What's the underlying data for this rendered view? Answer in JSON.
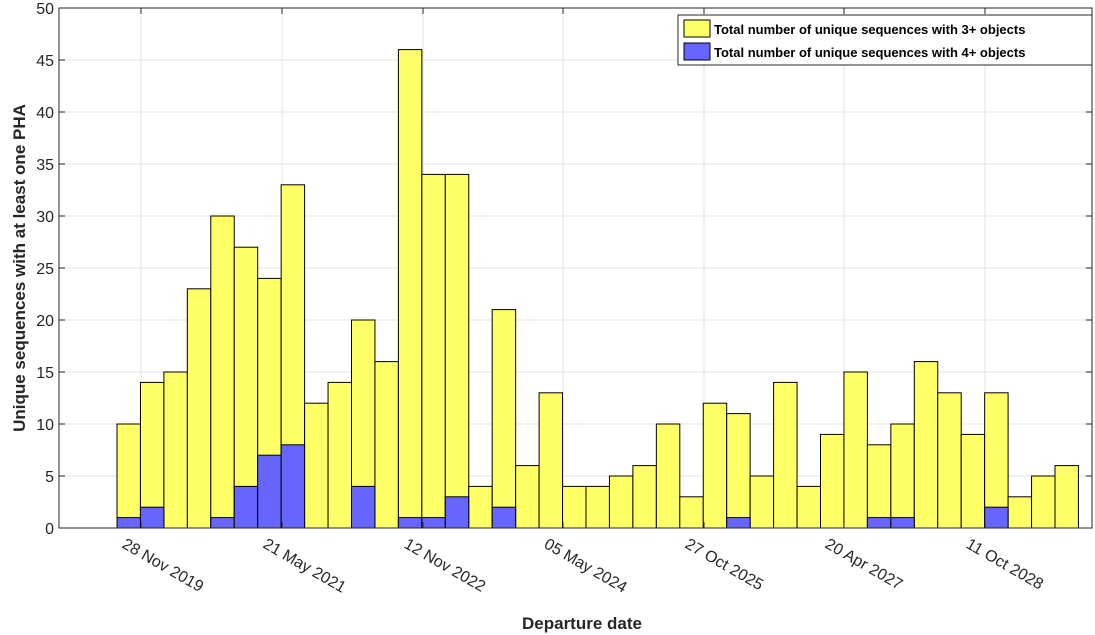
{
  "chart_data": {
    "type": "bar",
    "xlabel": "Departure date",
    "ylabel": "Unique sequences with at least one PHA",
    "ylim": [
      0,
      50
    ],
    "yticks": [
      0,
      5,
      10,
      15,
      20,
      25,
      30,
      35,
      40,
      45,
      50
    ],
    "xticks": [
      "28 Nov 2019",
      "21 May 2021",
      "12 Nov 2022",
      "05 May 2024",
      "27 Oct 2025",
      "20 Apr 2027",
      "11 Oct 2028"
    ],
    "grid": true,
    "legend_position": "top-right",
    "bin_count": 41,
    "series": [
      {
        "name": "Total number of unique sequences with 3+ objects",
        "color": "#ffff66",
        "values": [
          10,
          14,
          15,
          23,
          30,
          27,
          24,
          33,
          12,
          14,
          20,
          16,
          46,
          34,
          34,
          4,
          21,
          6,
          13,
          4,
          4,
          5,
          6,
          10,
          3,
          12,
          11,
          5,
          14,
          4,
          9,
          15,
          8,
          10,
          16,
          13,
          9,
          13,
          3,
          5,
          6
        ]
      },
      {
        "name": "Total number of unique sequences with 4+ objects",
        "color": "#6666ff",
        "values": [
          1,
          2,
          0,
          0,
          1,
          4,
          7,
          8,
          0,
          0,
          4,
          0,
          1,
          1,
          3,
          0,
          2,
          0,
          0,
          0,
          0,
          0,
          0,
          0,
          0,
          0,
          1,
          0,
          0,
          0,
          0,
          0,
          1,
          1,
          0,
          0,
          0,
          2,
          0,
          0,
          0
        ]
      }
    ]
  }
}
